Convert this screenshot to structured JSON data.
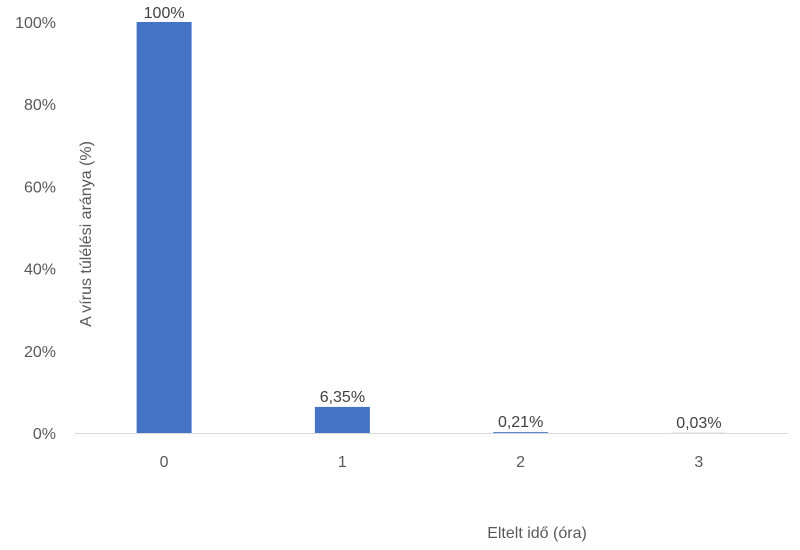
{
  "chart_data": {
    "type": "bar",
    "title": "",
    "xlabel": "Eltelt idő (óra)",
    "ylabel": "A vírus túlélési aránya (%)",
    "categories": [
      "0",
      "1",
      "2",
      "3"
    ],
    "values": [
      100,
      6.35,
      0.21,
      0.03
    ],
    "data_labels": [
      "100%",
      "6,35%",
      "0,21%",
      "0,03%"
    ],
    "ylim": [
      0,
      100
    ],
    "y_ticks": [
      0,
      20,
      40,
      60,
      80,
      100
    ],
    "y_tick_labels": [
      "0%",
      "20%",
      "40%",
      "60%",
      "80%",
      "100%"
    ],
    "grid": false,
    "legend": "none",
    "bar_color": "#4472C4",
    "axis_color": "#D9D9D9"
  }
}
